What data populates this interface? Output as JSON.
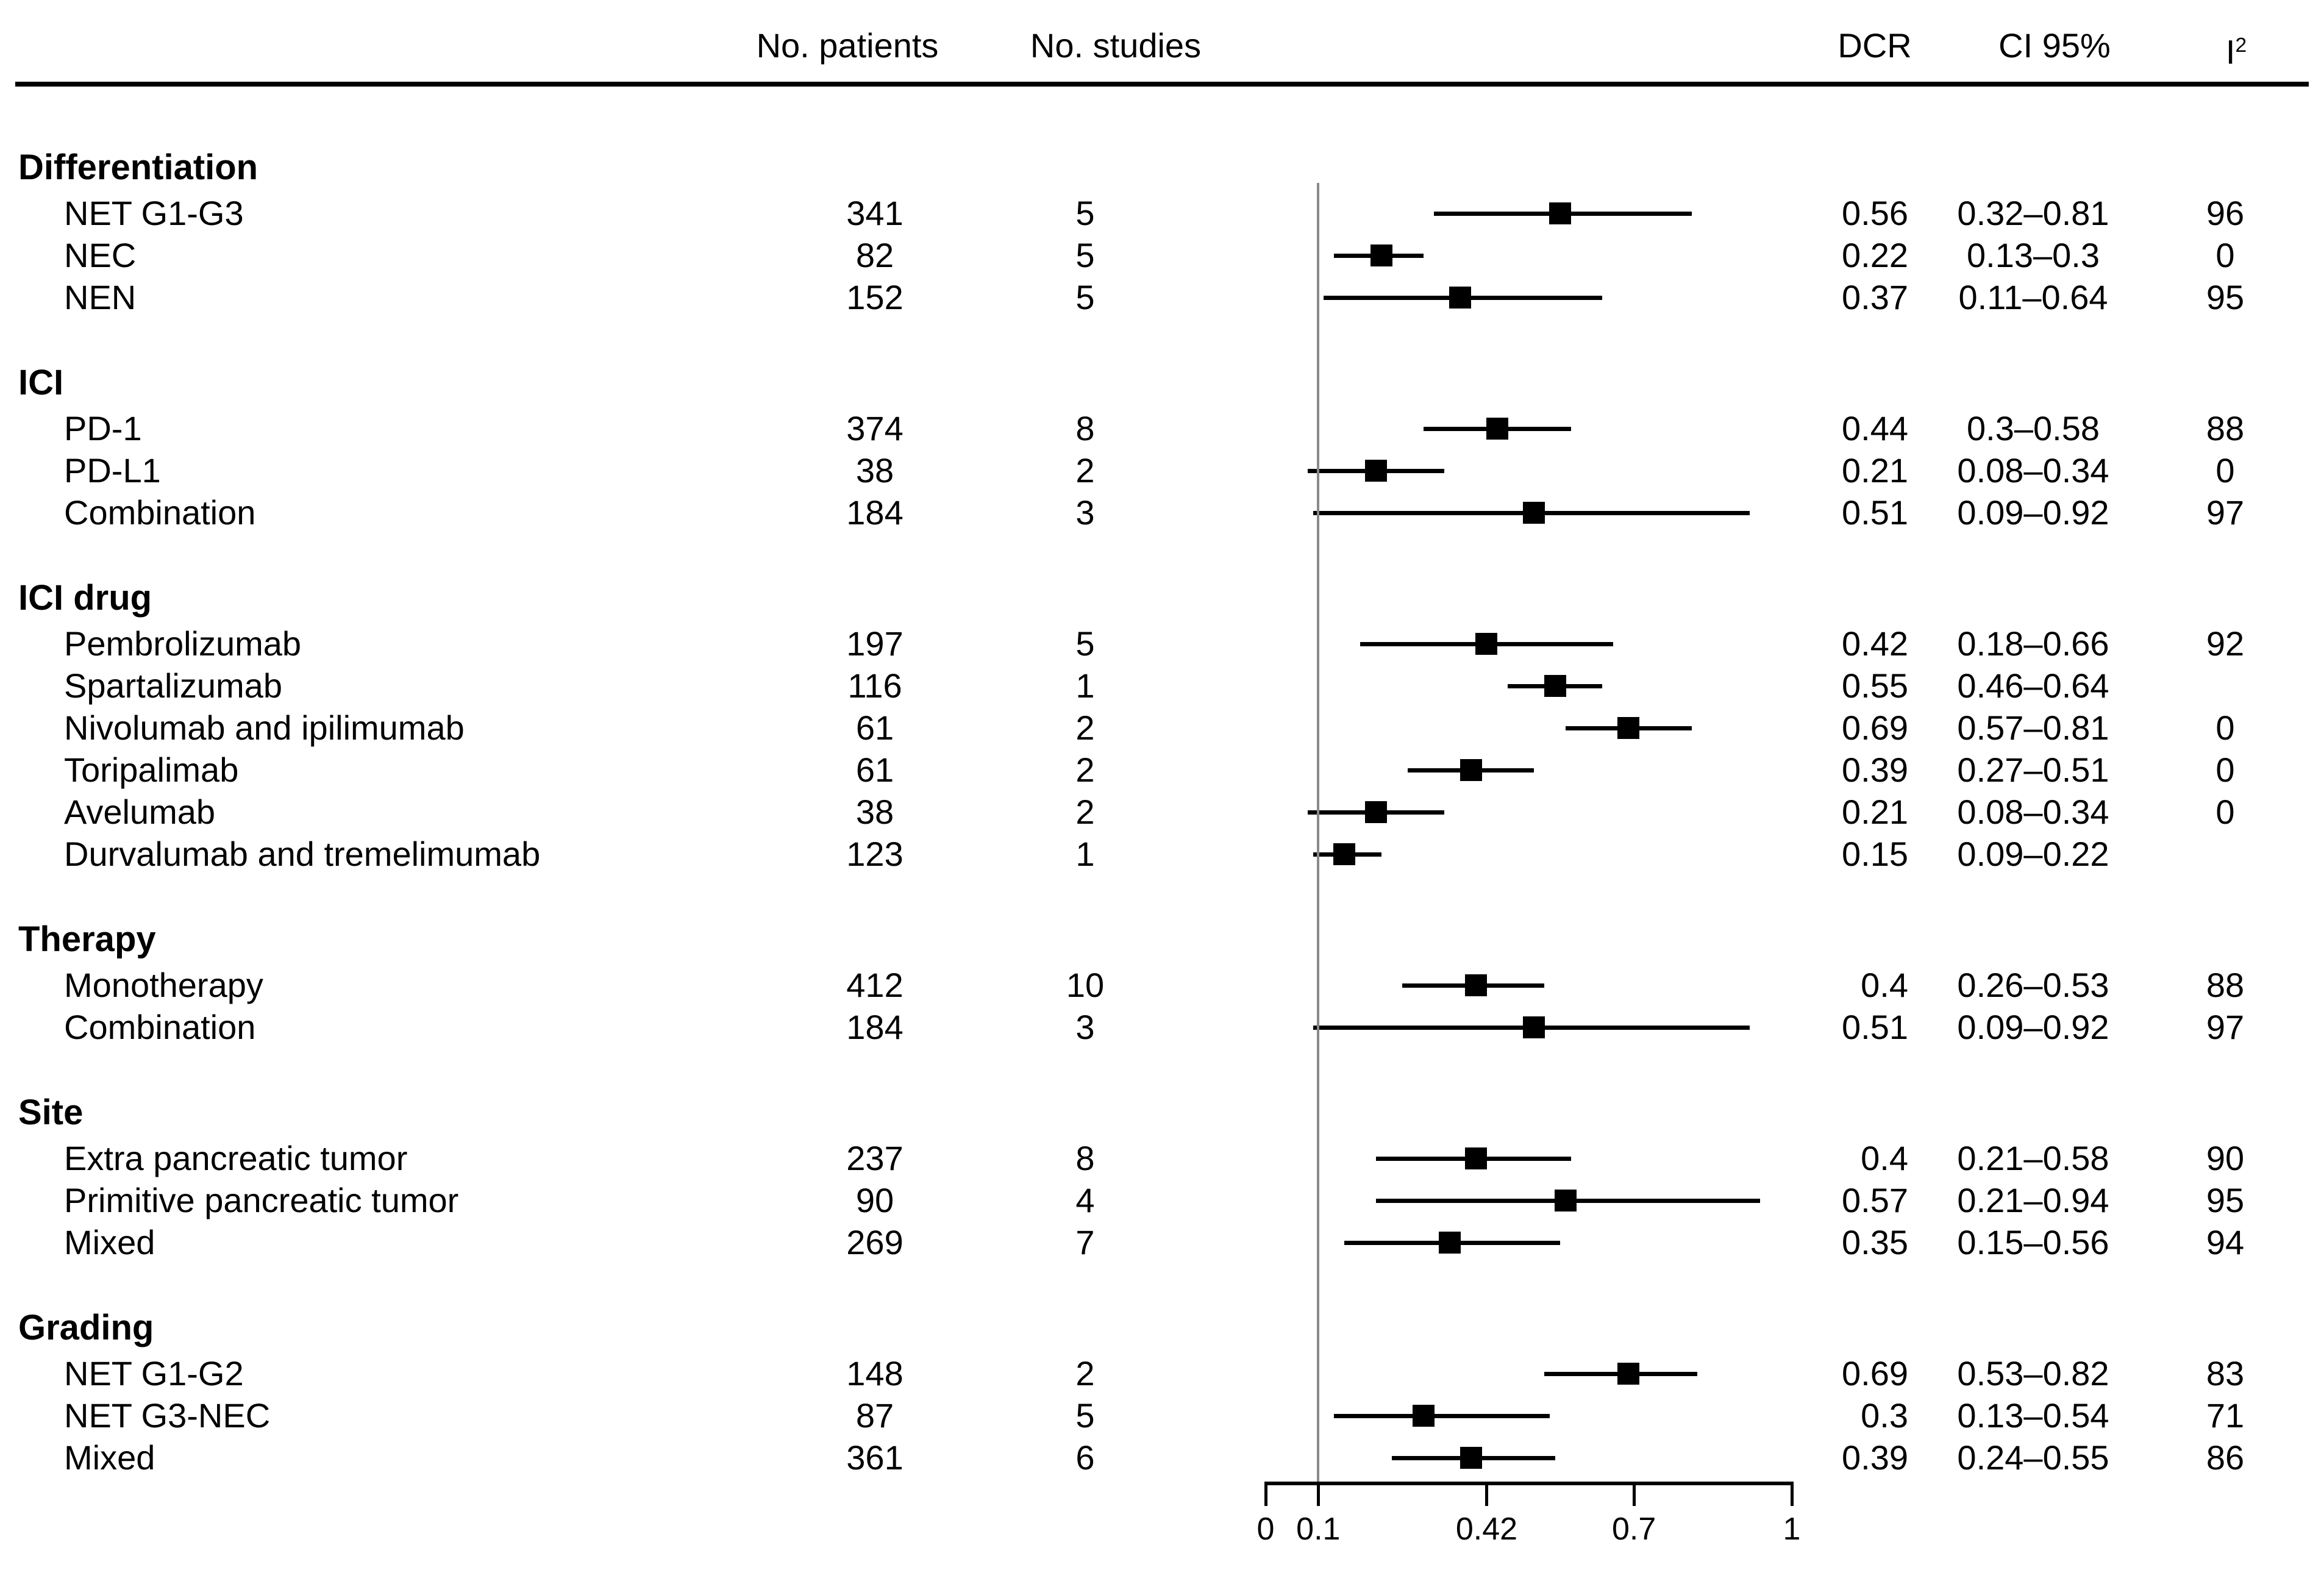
{
  "columns": {
    "patients": "No. patients",
    "studies": "No. studies",
    "dcr": "DCR",
    "ci": "CI 95%",
    "i2_base": "I",
    "i2_sup": "2"
  },
  "colors": {
    "marker": "#000000",
    "reference_line": "#8a8a8a",
    "text": "#000000",
    "background": "#ffffff"
  },
  "chart_data": {
    "type": "forest",
    "x_axis": {
      "min": 0,
      "max": 1,
      "tick_labels": [
        "0",
        "0.1",
        "0.42",
        "0.7",
        "1"
      ],
      "tick_values": [
        0,
        0.1,
        0.42,
        0.7,
        1
      ],
      "reference_line_value": 0.1,
      "grid": false
    },
    "legend": null,
    "groups": [
      {
        "label": "Differentiation",
        "rows": [
          {
            "label": "NET G1-G3",
            "patients": "341",
            "studies": "5",
            "dcr": 0.56,
            "dcr_text": "0.56",
            "ci_low": 0.32,
            "ci_high": 0.81,
            "ci_text": "0.32–0.81",
            "i2": "96"
          },
          {
            "label": "NEC",
            "patients": "82",
            "studies": "5",
            "dcr": 0.22,
            "dcr_text": "0.22",
            "ci_low": 0.13,
            "ci_high": 0.3,
            "ci_text": "0.13–0.3",
            "i2": "0"
          },
          {
            "label": "NEN",
            "patients": "152",
            "studies": "5",
            "dcr": 0.37,
            "dcr_text": "0.37",
            "ci_low": 0.11,
            "ci_high": 0.64,
            "ci_text": "0.11–0.64",
            "i2": "95"
          }
        ]
      },
      {
        "label": "ICI",
        "rows": [
          {
            "label": "PD-1",
            "patients": "374",
            "studies": "8",
            "dcr": 0.44,
            "dcr_text": "0.44",
            "ci_low": 0.3,
            "ci_high": 0.58,
            "ci_text": "0.3–0.58",
            "i2": "88"
          },
          {
            "label": "PD-L1",
            "patients": "38",
            "studies": "2",
            "dcr": 0.21,
            "dcr_text": "0.21",
            "ci_low": 0.08,
            "ci_high": 0.34,
            "ci_text": "0.08–0.34",
            "i2": "0"
          },
          {
            "label": "Combination",
            "patients": "184",
            "studies": "3",
            "dcr": 0.51,
            "dcr_text": "0.51",
            "ci_low": 0.09,
            "ci_high": 0.92,
            "ci_text": "0.09–0.92",
            "i2": "97"
          }
        ]
      },
      {
        "label": "ICI drug",
        "rows": [
          {
            "label": "Pembrolizumab",
            "patients": "197",
            "studies": "5",
            "dcr": 0.42,
            "dcr_text": "0.42",
            "ci_low": 0.18,
            "ci_high": 0.66,
            "ci_text": "0.18–0.66",
            "i2": "92"
          },
          {
            "label": "Spartalizumab",
            "patients": "116",
            "studies": "1",
            "dcr": 0.55,
            "dcr_text": "0.55",
            "ci_low": 0.46,
            "ci_high": 0.64,
            "ci_text": "0.46–0.64",
            "i2": ""
          },
          {
            "label": "Nivolumab and ipilimumab",
            "patients": "61",
            "studies": "2",
            "dcr": 0.69,
            "dcr_text": "0.69",
            "ci_low": 0.57,
            "ci_high": 0.81,
            "ci_text": "0.57–0.81",
            "i2": "0"
          },
          {
            "label": "Toripalimab",
            "patients": "61",
            "studies": "2",
            "dcr": 0.39,
            "dcr_text": "0.39",
            "ci_low": 0.27,
            "ci_high": 0.51,
            "ci_text": "0.27–0.51",
            "i2": "0"
          },
          {
            "label": "Avelumab",
            "patients": "38",
            "studies": "2",
            "dcr": 0.21,
            "dcr_text": "0.21",
            "ci_low": 0.08,
            "ci_high": 0.34,
            "ci_text": "0.08–0.34",
            "i2": "0"
          },
          {
            "label": "Durvalumab and tremelimumab",
            "patients": "123",
            "studies": "1",
            "dcr": 0.15,
            "dcr_text": "0.15",
            "ci_low": 0.09,
            "ci_high": 0.22,
            "ci_text": "0.09–0.22",
            "i2": ""
          }
        ]
      },
      {
        "label": "Therapy",
        "rows": [
          {
            "label": "Monotherapy",
            "patients": "412",
            "studies": "10",
            "dcr": 0.4,
            "dcr_text": "0.4",
            "ci_low": 0.26,
            "ci_high": 0.53,
            "ci_text": "0.26–0.53",
            "i2": "88"
          },
          {
            "label": "Combination",
            "patients": "184",
            "studies": "3",
            "dcr": 0.51,
            "dcr_text": "0.51",
            "ci_low": 0.09,
            "ci_high": 0.92,
            "ci_text": "0.09–0.92",
            "i2": "97"
          }
        ]
      },
      {
        "label": "Site",
        "rows": [
          {
            "label": "Extra pancreatic tumor",
            "patients": "237",
            "studies": "8",
            "dcr": 0.4,
            "dcr_text": "0.4",
            "ci_low": 0.21,
            "ci_high": 0.58,
            "ci_text": "0.21–0.58",
            "i2": "90"
          },
          {
            "label": "Primitive pancreatic tumor",
            "patients": "90",
            "studies": "4",
            "dcr": 0.57,
            "dcr_text": "0.57",
            "ci_low": 0.21,
            "ci_high": 0.94,
            "ci_text": "0.21–0.94",
            "i2": "95"
          },
          {
            "label": "Mixed",
            "patients": "269",
            "studies": "7",
            "dcr": 0.35,
            "dcr_text": "0.35",
            "ci_low": 0.15,
            "ci_high": 0.56,
            "ci_text": "0.15–0.56",
            "i2": "94"
          }
        ]
      },
      {
        "label": "Grading",
        "rows": [
          {
            "label": "NET G1-G2",
            "patients": "148",
            "studies": "2",
            "dcr": 0.69,
            "dcr_text": "0.69",
            "ci_low": 0.53,
            "ci_high": 0.82,
            "ci_text": "0.53–0.82",
            "i2": "83"
          },
          {
            "label": "NET G3-NEC",
            "patients": "87",
            "studies": "5",
            "dcr": 0.3,
            "dcr_text": "0.3",
            "ci_low": 0.13,
            "ci_high": 0.54,
            "ci_text": "0.13–0.54",
            "i2": "71"
          },
          {
            "label": "Mixed",
            "patients": "361",
            "studies": "6",
            "dcr": 0.39,
            "dcr_text": "0.39",
            "ci_low": 0.24,
            "ci_high": 0.55,
            "ci_text": "0.24–0.55",
            "i2": "86"
          }
        ]
      }
    ]
  }
}
